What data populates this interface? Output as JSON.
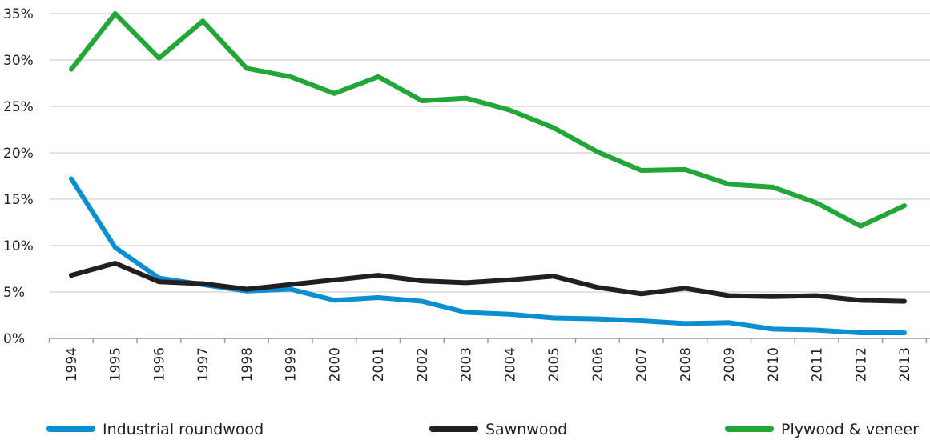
{
  "chart_data": {
    "type": "line",
    "title": "",
    "xlabel": "",
    "ylabel": "",
    "categories": [
      "1994",
      "1995",
      "1996",
      "1997",
      "1998",
      "1999",
      "2000",
      "2001",
      "2002",
      "2003",
      "2004",
      "2005",
      "2006",
      "2007",
      "2008",
      "2009",
      "2010",
      "2011",
      "2012",
      "2013"
    ],
    "ylim": [
      0,
      35
    ],
    "yticks": [
      0,
      5,
      10,
      15,
      20,
      25,
      30,
      35
    ],
    "ytick_labels": [
      "0%",
      "5%",
      "10%",
      "15%",
      "20%",
      "25%",
      "30%",
      "35%"
    ],
    "grid": true,
    "legend_position": "bottom",
    "series": [
      {
        "name": "Industrial roundwood",
        "color": "#0b8fd1",
        "values": [
          17.2,
          9.8,
          6.5,
          5.8,
          5.1,
          5.3,
          4.1,
          4.4,
          4.0,
          2.8,
          2.6,
          2.2,
          2.1,
          1.9,
          1.6,
          1.7,
          1.0,
          0.9,
          0.6,
          0.6
        ]
      },
      {
        "name": "Sawnwood",
        "color": "#231f20",
        "values": [
          6.8,
          8.1,
          6.1,
          5.9,
          5.3,
          5.8,
          6.3,
          6.8,
          6.2,
          6.0,
          6.3,
          6.7,
          5.5,
          4.8,
          5.4,
          4.6,
          4.5,
          4.6,
          4.1,
          4.0
        ]
      },
      {
        "name": "Plywood & veneer",
        "color": "#21a637",
        "values": [
          29.0,
          35.0,
          30.2,
          34.2,
          29.1,
          28.2,
          26.4,
          28.2,
          25.6,
          25.9,
          24.6,
          22.7,
          20.1,
          18.1,
          18.2,
          16.6,
          16.3,
          14.6,
          12.1,
          14.3
        ]
      }
    ]
  }
}
